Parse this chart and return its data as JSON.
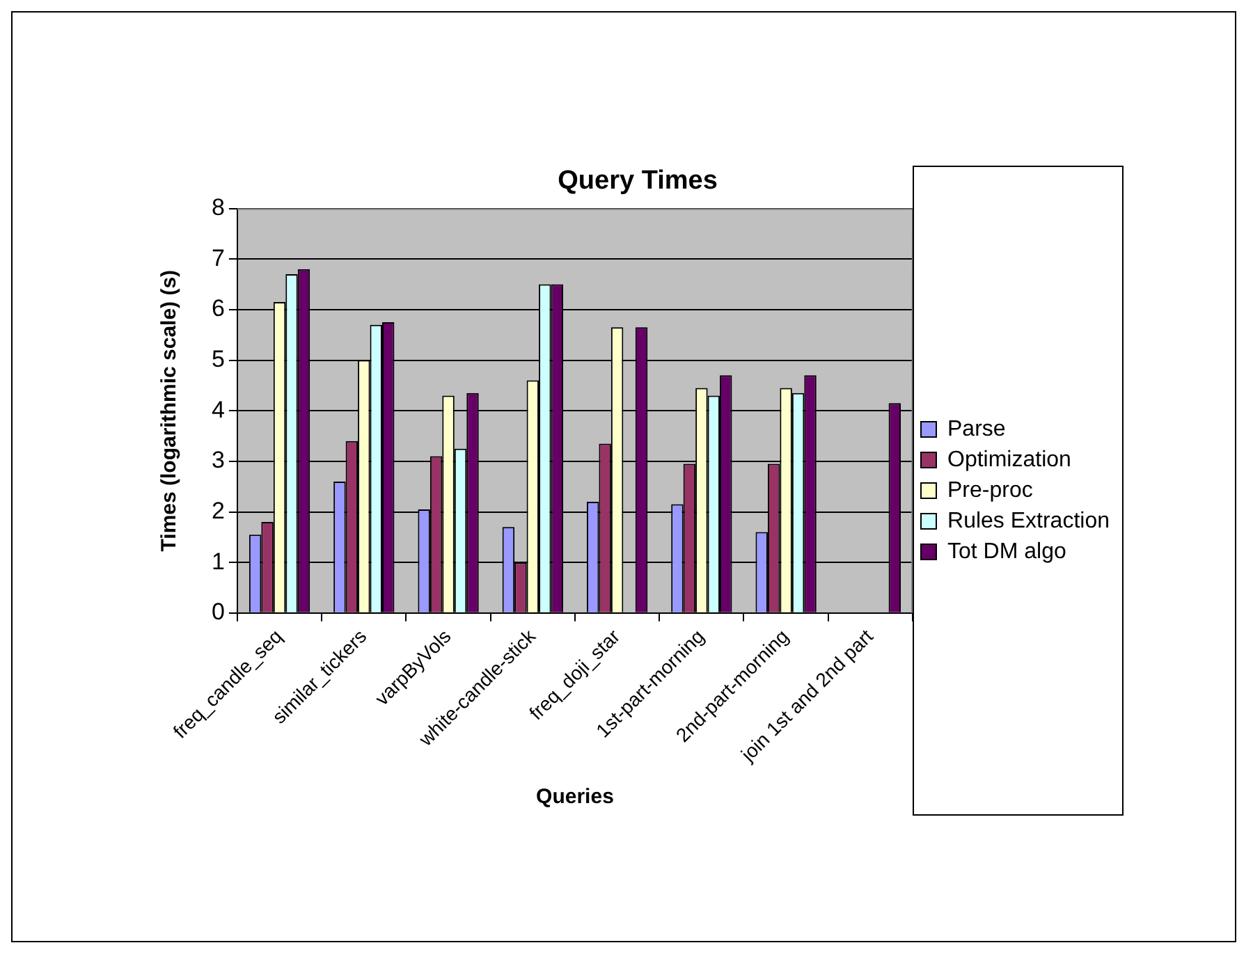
{
  "chart_data": {
    "type": "bar",
    "title": "Query Times",
    "xlabel": "Queries",
    "ylabel": "Times (logarithmic scale) (s)",
    "categories": [
      "freq_candle_seq",
      "similar_tickers",
      "varpByVols",
      "white-candle-stick",
      "freq_doji_star",
      "1st-part-morning",
      "2nd-part-morning",
      "join 1st and 2nd part"
    ],
    "series": [
      {
        "name": "Parse",
        "color": "#9999ff",
        "values": [
          1.55,
          2.6,
          2.05,
          1.7,
          2.2,
          2.15,
          1.6,
          null
        ]
      },
      {
        "name": "Optimization",
        "color": "#993366",
        "values": [
          1.8,
          3.4,
          3.1,
          1.0,
          3.35,
          2.95,
          2.95,
          null
        ]
      },
      {
        "name": "Pre-proc",
        "color": "#ffffcc",
        "values": [
          6.15,
          5.0,
          4.3,
          4.6,
          5.65,
          4.45,
          4.45,
          null
        ]
      },
      {
        "name": "Rules Extraction",
        "color": "#ccffff",
        "values": [
          6.7,
          5.7,
          3.25,
          6.5,
          null,
          4.3,
          4.35,
          null
        ]
      },
      {
        "name": "Tot DM algo",
        "color": "#660066",
        "values": [
          6.8,
          5.75,
          4.35,
          6.5,
          5.65,
          4.7,
          4.7,
          4.15
        ]
      }
    ],
    "ylim": [
      0,
      8
    ],
    "yticks": [
      0,
      1,
      2,
      3,
      4,
      5,
      6,
      7,
      8
    ],
    "grid": "y",
    "legend": "right"
  }
}
